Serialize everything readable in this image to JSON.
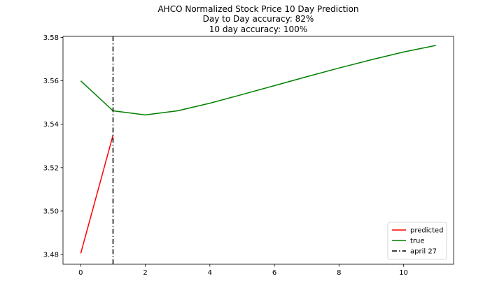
{
  "chart_data": {
    "type": "line",
    "title": "AHCO Normalized Stock Price 10 Day Prediction",
    "subtitle_lines": [
      "Day to Day accuracy: 82%",
      "10 day accuracy: 100%"
    ],
    "xlabel": "",
    "ylabel": "",
    "xlim": [
      -0.55,
      11.55
    ],
    "ylim": [
      3.4755,
      3.5805
    ],
    "xticks": [
      0,
      2,
      4,
      6,
      8,
      10
    ],
    "xtick_labels": [
      "0",
      "2",
      "4",
      "6",
      "8",
      "10"
    ],
    "yticks": [
      3.48,
      3.5,
      3.52,
      3.54,
      3.56,
      3.58
    ],
    "ytick_labels": [
      "3.48",
      "3.50",
      "3.52",
      "3.54",
      "3.56",
      "3.58"
    ],
    "grid": false,
    "legend_position": "bottom-right",
    "series": [
      {
        "name": "predicted",
        "color": "#ff0000",
        "style": "solid",
        "x": [
          0,
          1
        ],
        "y": [
          3.4805,
          3.535
        ]
      },
      {
        "name": "true",
        "color": "#008000",
        "style": "solid",
        "x": [
          0,
          1,
          2,
          3,
          4,
          5,
          6,
          7,
          8,
          9,
          10,
          11
        ],
        "y": [
          3.56,
          3.5462,
          3.5443,
          3.5462,
          3.5497,
          3.5537,
          3.5578,
          3.5619,
          3.5659,
          3.5697,
          3.5733,
          3.5763
        ]
      }
    ],
    "vlines": [
      {
        "name": "april 27",
        "x": 1,
        "color": "#000000",
        "style": "dashdot"
      }
    ]
  }
}
